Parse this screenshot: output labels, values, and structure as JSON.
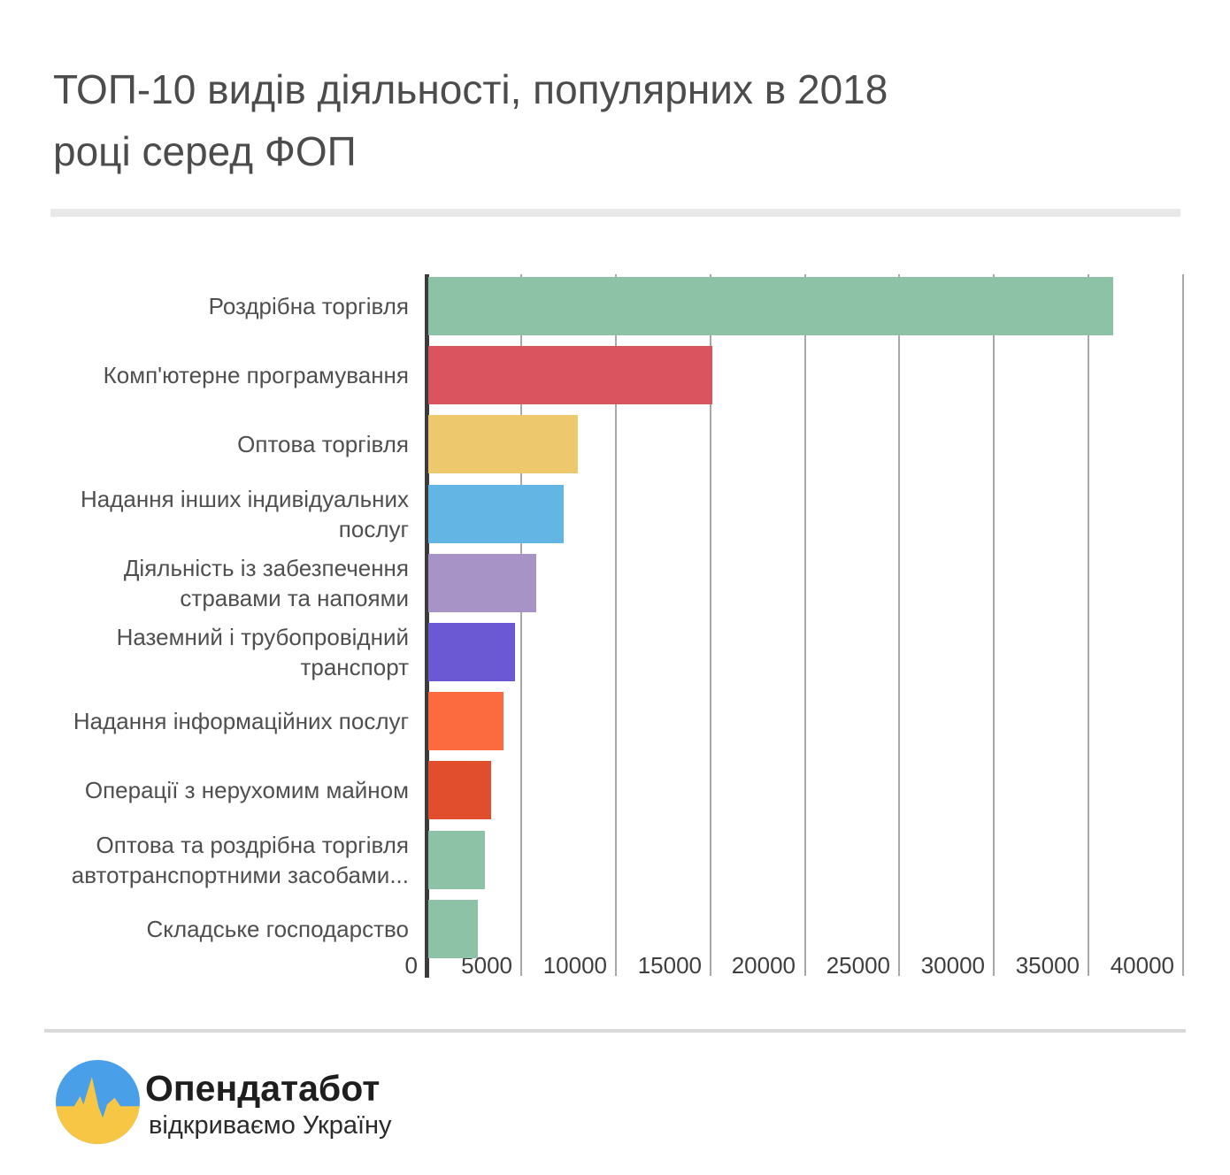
{
  "title_lines": [
    "ТОП-10 видів діяльності, популярних в 2018",
    "році серед ФОП"
  ],
  "chart_data": {
    "type": "bar",
    "orientation": "horizontal",
    "title": "ТОП-10 видів діяльності, популярних в 2018 році серед ФОП",
    "categories": [
      "Роздрібна торгівля",
      "Комп'ютерне програмування",
      "Оптова торгівля",
      "Надання інших індивідуальних послуг",
      "Діяльність із забезпечення стравами та напоями",
      "Наземний і трубопровідний транспорт",
      "Надання інформаційних послуг",
      "Операції з нерухомим майном",
      "Оптова та роздрібна торгівля автотранспортними засобами...",
      "Складське господарство"
    ],
    "values": [
      36300,
      15100,
      8000,
      7250,
      5800,
      4700,
      4050,
      3400,
      3100,
      2700
    ],
    "bar_colors": [
      "#8ec2a7",
      "#d9545f",
      "#eec86c",
      "#63b5e4",
      "#a893c7",
      "#6b59d4",
      "#fc6b40",
      "#e14e2e",
      "#8ec2a7",
      "#8ec2a7"
    ],
    "x_ticks": [
      0,
      5000,
      10000,
      15000,
      20000,
      25000,
      30000,
      35000,
      40000
    ],
    "xlim": [
      0,
      40000
    ],
    "grid": true,
    "legend": false,
    "xlabel": "",
    "ylabel": "",
    "axis_color": "#3c3c3c",
    "grid_color": "#a8a8a8"
  },
  "footer": {
    "brand_name": "Опендатабот",
    "brand_tagline": "відкриваємо Україну",
    "logo_colors": {
      "blue": "#4aa0e8",
      "yellow": "#f6c644"
    }
  }
}
